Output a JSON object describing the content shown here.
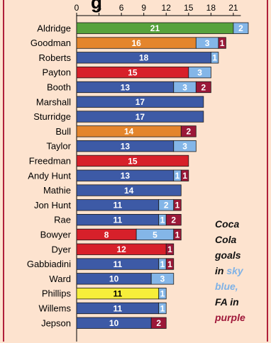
{
  "title": "g",
  "colors": {
    "league": "#3d5aa6",
    "league_alt": {
      "green": "#57a23c",
      "orange": "#e4852c",
      "red": "#d7202a",
      "yellow": "#f6ee3a"
    },
    "coca_cola": "#84b6e8",
    "fa": "#9b1838"
  },
  "legend": {
    "line1": "Coca",
    "line2": "Cola",
    "line3": "goals",
    "line4_prefix": "in",
    "line4_colored": "sky",
    "line5": "blue,",
    "line6": "FA in",
    "line7": "purple"
  },
  "chart_data": {
    "type": "bar",
    "orientation": "horizontal",
    "stacked": true,
    "xlim": [
      0,
      22
    ],
    "x_ticks": [
      0,
      3,
      6,
      9,
      12,
      15,
      18,
      21
    ],
    "x_axis_position": "top",
    "grid": false,
    "categories": [
      "Aldridge",
      "Goodman",
      "Roberts",
      "Payton",
      "Booth",
      "Marshall",
      "Sturridge",
      "Bull",
      "Taylor",
      "Freedman",
      "Andy Hunt",
      "Mathie",
      "Jon Hunt",
      "Rae",
      "Bowyer",
      "Dyer",
      "Gabbiadini",
      "Ward",
      "Phillips",
      "Willems",
      "Jepson"
    ],
    "series": [
      {
        "values": [
          21,
          16,
          18,
          15,
          13,
          17,
          17,
          14,
          13,
          15,
          13,
          14,
          11,
          11,
          8,
          12,
          11,
          10,
          11,
          11,
          10
        ],
        "bar_colors": [
          "green",
          "orange",
          "league",
          "red",
          "league",
          "league",
          "league",
          "orange",
          "league",
          "red",
          "league",
          "league",
          "league",
          "league",
          "red",
          "red",
          "league",
          "league",
          "yellow",
          "league",
          "league"
        ]
      },
      {
        "name": "Coca Cola goals",
        "values": [
          2,
          3,
          1,
          3,
          3,
          0,
          0,
          0,
          3,
          0,
          1,
          0,
          2,
          1,
          5,
          0,
          1,
          3,
          1,
          1,
          0
        ]
      },
      {
        "name": "FA",
        "values": [
          0,
          1,
          0,
          0,
          2,
          0,
          0,
          2,
          0,
          0,
          1,
          0,
          1,
          2,
          1,
          1,
          1,
          0,
          0,
          0,
          2
        ]
      }
    ]
  }
}
